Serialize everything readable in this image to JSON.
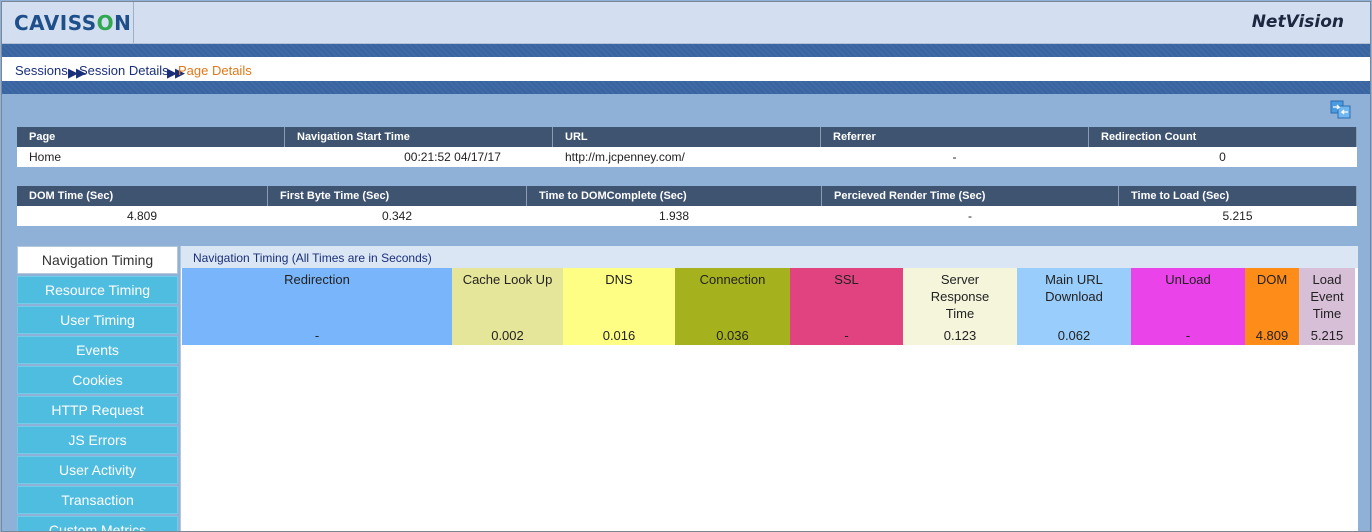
{
  "header": {
    "logo_text_a": "CAVISS",
    "logo_text_o": "O",
    "logo_text_b": "N",
    "product": "NetVision"
  },
  "breadcrumb": {
    "items": [
      "Sessions",
      "Session Details",
      "Page Details"
    ]
  },
  "page_table": {
    "headers": [
      "Page",
      "Navigation Start Time",
      "URL",
      "Referrer",
      "Redirection Count"
    ],
    "row": [
      "Home",
      "00:21:52 04/17/17",
      "http://m.jcpenney.com/",
      "-",
      "0"
    ]
  },
  "timing_table": {
    "headers": [
      "DOM Time (Sec)",
      "First Byte Time (Sec)",
      "Time to DOMComplete (Sec)",
      "Percieved Render Time (Sec)",
      "Time to Load (Sec)"
    ],
    "row": [
      "4.809",
      "0.342",
      "1.938",
      "-",
      "5.215"
    ]
  },
  "sidebar": {
    "tabs": [
      "Navigation Timing",
      "Resource Timing",
      "User Timing",
      "Events",
      "Cookies",
      "HTTP Request",
      "JS Errors",
      "User Activity",
      "Transaction",
      "Custom Metrics"
    ],
    "active": "Navigation Timing"
  },
  "panel": {
    "title": "Navigation Timing (All Times are in Seconds)",
    "columns": [
      {
        "label": "Redirection",
        "value": "-",
        "color": "#79b5fb"
      },
      {
        "label": "Cache Look Up",
        "value": "0.002",
        "color": "#e6e69a"
      },
      {
        "label": "DNS",
        "value": "0.016",
        "color": "#fefe85"
      },
      {
        "label": "Connection",
        "value": "0.036",
        "color": "#a6b21d"
      },
      {
        "label": "SSL",
        "value": "-",
        "color": "#e0437f"
      },
      {
        "label": "Server Response Time",
        "value": "0.123",
        "color": "#f5f5dc"
      },
      {
        "label": "Main URL Download",
        "value": "0.062",
        "color": "#99cdfb"
      },
      {
        "label": "UnLoad",
        "value": "-",
        "color": "#ea43ea"
      },
      {
        "label": "DOM",
        "value": "4.809",
        "color": "#fe8c18"
      },
      {
        "label": "Load Event Time",
        "value": "5.215",
        "color": "#d8bfd8"
      }
    ]
  }
}
